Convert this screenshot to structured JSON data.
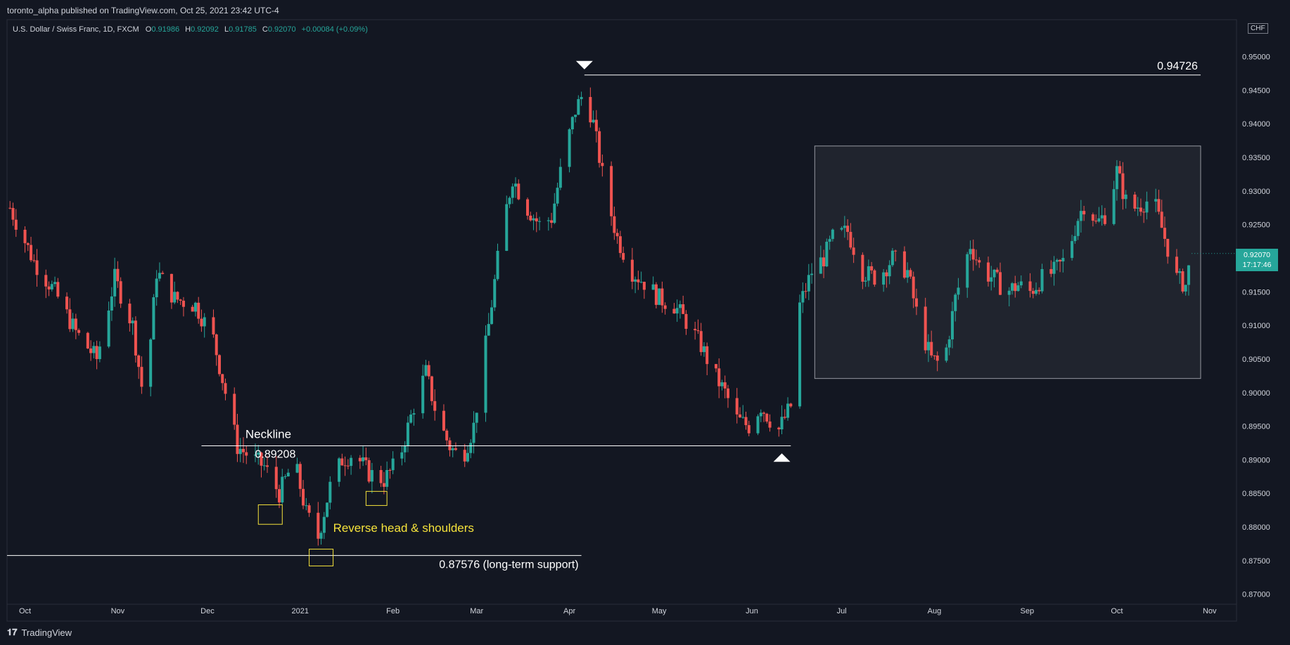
{
  "publisher_line": "toronto_alpha published on TradingView.com, Oct 25, 2021 23:42 UTC-4",
  "brand": {
    "name": "TradingView"
  },
  "symbol_line": {
    "name": "U.S. Dollar / Swiss Franc, 1D, FXCM",
    "o_label": "O",
    "o_value": "0.91986",
    "h_label": "H",
    "h_value": "0.92092",
    "l_label": "L",
    "l_value": "0.91785",
    "c_label": "C",
    "c_value": "0.92070",
    "change": "+0.00084 (+0.09%)"
  },
  "currency_label": "CHF",
  "last_price": {
    "value": "0.92070",
    "countdown": "17:17:46"
  },
  "colors": {
    "background": "#131722",
    "up": "#26a69a",
    "down": "#ef5350",
    "text": "#d1d4dc",
    "annotation_yellow": "#f5e23b",
    "line_white": "#ffffff"
  },
  "chart_data": {
    "type": "candlestick",
    "symbol": "USDCHF",
    "interval": "1D",
    "ylim": [
      0.8685,
      0.9555
    ],
    "y_ticks": [
      "0.87000",
      "0.87500",
      "0.88000",
      "0.88500",
      "0.89000",
      "0.89500",
      "0.90000",
      "0.90500",
      "0.91000",
      "0.91500",
      "0.92000",
      "0.92500",
      "0.93000",
      "0.93500",
      "0.94000",
      "0.94500",
      "0.95000"
    ],
    "x_ticks": [
      {
        "label": "Oct",
        "day": 0
      },
      {
        "label": "Nov",
        "day": 31
      },
      {
        "label": "Dec",
        "day": 61
      },
      {
        "label": "2021",
        "day": 92
      },
      {
        "label": "Feb",
        "day": 123
      },
      {
        "label": "Mar",
        "day": 151
      },
      {
        "label": "Apr",
        "day": 182
      },
      {
        "label": "May",
        "day": 212
      },
      {
        "label": "Jun",
        "day": 243
      },
      {
        "label": "Jul",
        "day": 273
      },
      {
        "label": "Aug",
        "day": 304
      },
      {
        "label": "Sep",
        "day": 335
      },
      {
        "label": "Oct",
        "day": 365
      },
      {
        "label": "Nov",
        "day": 396
      }
    ],
    "xlim_days": [
      -6,
      405
    ],
    "last_day": 390,
    "close_path": [
      [
        -5,
        0.9275
      ],
      [
        3,
        0.9195
      ],
      [
        10,
        0.915
      ],
      [
        17,
        0.909
      ],
      [
        24,
        0.905
      ],
      [
        30,
        0.917
      ],
      [
        36,
        0.91
      ],
      [
        40,
        0.898
      ],
      [
        44,
        0.918
      ],
      [
        50,
        0.914
      ],
      [
        57,
        0.913
      ],
      [
        63,
        0.908
      ],
      [
        67,
        0.9
      ],
      [
        71,
        0.892
      ],
      [
        75,
        0.8905
      ],
      [
        80,
        0.889
      ],
      [
        85,
        0.885
      ],
      [
        90,
        0.89
      ],
      [
        94,
        0.882
      ],
      [
        98,
        0.8785
      ],
      [
        102,
        0.886
      ],
      [
        106,
        0.89
      ],
      [
        110,
        0.891
      ],
      [
        115,
        0.888
      ],
      [
        120,
        0.887
      ],
      [
        125,
        0.89
      ],
      [
        130,
        0.898
      ],
      [
        134,
        0.903
      ],
      [
        138,
        0.896
      ],
      [
        142,
        0.892
      ],
      [
        146,
        0.89
      ],
      [
        150,
        0.895
      ],
      [
        155,
        0.91
      ],
      [
        159,
        0.923
      ],
      [
        163,
        0.932
      ],
      [
        167,
        0.928
      ],
      [
        172,
        0.925
      ],
      [
        176,
        0.926
      ],
      [
        180,
        0.935
      ],
      [
        184,
        0.942
      ],
      [
        187,
        0.945
      ],
      [
        190,
        0.94
      ],
      [
        194,
        0.93
      ],
      [
        198,
        0.923
      ],
      [
        203,
        0.918
      ],
      [
        208,
        0.916
      ],
      [
        212,
        0.914
      ],
      [
        217,
        0.913
      ],
      [
        222,
        0.91
      ],
      [
        226,
        0.907
      ],
      [
        230,
        0.903
      ],
      [
        234,
        0.9
      ],
      [
        238,
        0.896
      ],
      [
        242,
        0.895
      ],
      [
        246,
        0.898
      ],
      [
        249,
        0.896
      ],
      [
        252,
        0.8945
      ],
      [
        256,
        0.898
      ],
      [
        259,
        0.913
      ],
      [
        263,
        0.918
      ],
      [
        267,
        0.92
      ],
      [
        270,
        0.923
      ],
      [
        275,
        0.924
      ],
      [
        280,
        0.918
      ],
      [
        285,
        0.917
      ],
      [
        290,
        0.92
      ],
      [
        295,
        0.918
      ],
      [
        299,
        0.91
      ],
      [
        303,
        0.905
      ],
      [
        307,
        0.904
      ],
      [
        311,
        0.914
      ],
      [
        316,
        0.922
      ],
      [
        320,
        0.918
      ],
      [
        324,
        0.917
      ],
      [
        328,
        0.915
      ],
      [
        332,
        0.916
      ],
      [
        336,
        0.915
      ],
      [
        340,
        0.917
      ],
      [
        344,
        0.918
      ],
      [
        348,
        0.92
      ],
      [
        352,
        0.926
      ],
      [
        355,
        0.929
      ],
      [
        358,
        0.925
      ],
      [
        362,
        0.927
      ],
      [
        365,
        0.933
      ],
      [
        369,
        0.927
      ],
      [
        373,
        0.928
      ],
      [
        377,
        0.929
      ],
      [
        381,
        0.923
      ],
      [
        385,
        0.917
      ],
      [
        388,
        0.916
      ],
      [
        390,
        0.9207
      ]
    ],
    "levels": [
      {
        "name": "high",
        "value": 0.94726,
        "label": "0.94726",
        "from_day": 187,
        "to_day": 393
      },
      {
        "name": "neckline",
        "value": 0.89208,
        "label": "0.89208",
        "title": "Neckline",
        "from_day": 59,
        "to_day": 256
      },
      {
        "name": "support",
        "value": 0.87576,
        "label": "0.87576 (long-term support)",
        "from_day": -6,
        "to_day": 186
      }
    ],
    "range_box": {
      "from_day": 264,
      "to_day": 393,
      "high": 0.9367,
      "low": 0.9021
    },
    "shoulder_boxes": [
      {
        "from_day": 78,
        "to_day": 86,
        "high": 0.8833,
        "low": 0.8804
      },
      {
        "from_day": 95,
        "to_day": 103,
        "high": 0.8767,
        "low": 0.8742
      },
      {
        "from_day": 114,
        "to_day": 121,
        "high": 0.8853,
        "low": 0.8832
      }
    ],
    "pattern_label": "Reverse head & shoulders",
    "markers": [
      {
        "type": "down-arrow",
        "day": 187,
        "value": 0.94726
      },
      {
        "type": "up-arrow",
        "day": 253,
        "value": 0.892
      }
    ]
  }
}
